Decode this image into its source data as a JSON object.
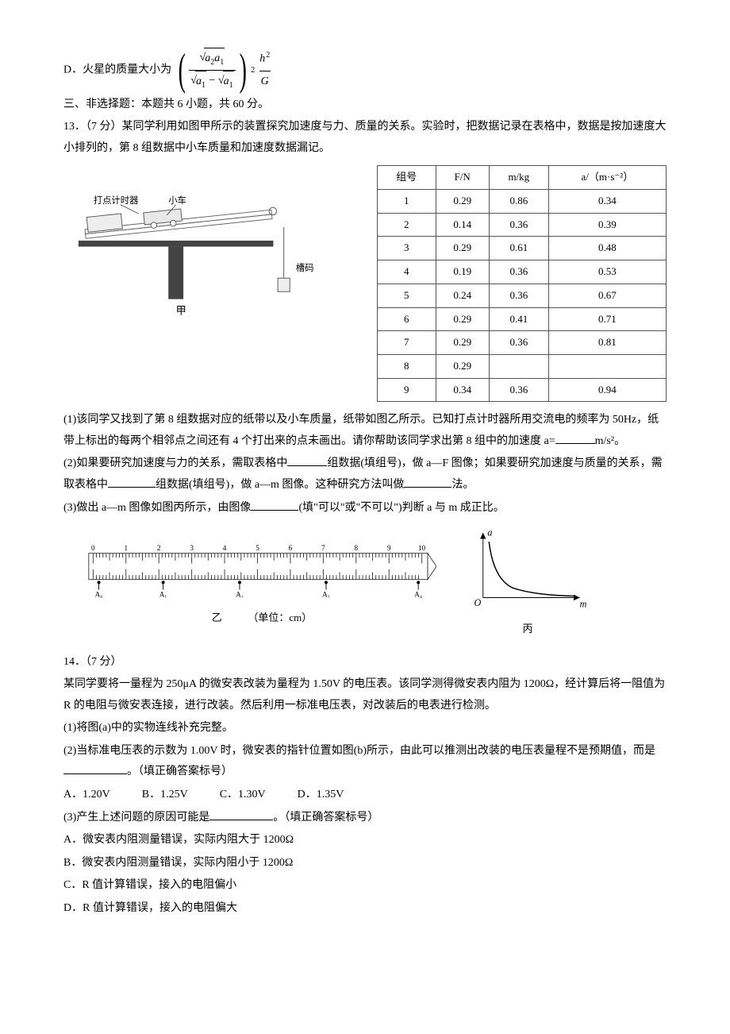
{
  "optD": {
    "label": "D．火星的质量大小为",
    "num_inner": "a",
    "num_s1": "2",
    "num_s2": "1",
    "den_p1": "a",
    "den_s1": "1",
    "den_p2": "a",
    "den_s2": "1",
    "exp": "2",
    "right_num": "h",
    "right_num_exp": "2",
    "right_den": "G"
  },
  "section3": "三、非选择题：本题共 6 小题，共 60 分。",
  "q13": {
    "stem": "13．（7 分）某同学利用如图甲所示的装置探究加速度与力、质量的关系。实验时，把数据记录在表格中，数据是按加速度大小排列的，第 8 组数据中小车质量和加速度数据漏记。",
    "diagram": {
      "labels": {
        "timer": "打点计时器",
        "cart": "小车",
        "weight": "槽码",
        "caption": "甲"
      },
      "colors": {
        "table": "#444",
        "cart": "#ddd",
        "line": "#777"
      }
    },
    "table": {
      "headers": [
        "组号",
        "F/N",
        "m/kg",
        "a/（m·s⁻²）"
      ],
      "rows": [
        [
          "1",
          "0.29",
          "0.86",
          "0.34"
        ],
        [
          "2",
          "0.14",
          "0.36",
          "0.39"
        ],
        [
          "3",
          "0.29",
          "0.61",
          "0.48"
        ],
        [
          "4",
          "0.19",
          "0.36",
          "0.53"
        ],
        [
          "5",
          "0.24",
          "0.36",
          "0.67"
        ],
        [
          "6",
          "0.29",
          "0.41",
          "0.71"
        ],
        [
          "7",
          "0.29",
          "0.36",
          "0.81"
        ],
        [
          "8",
          "0.29",
          "",
          ""
        ],
        [
          "9",
          "0.34",
          "0.36",
          "0.94"
        ]
      ]
    },
    "p1a": "(1)该同学又找到了第 8 组数据对应的纸带以及小车质量，纸带如图乙所示。已知打点计时器所用交流电的频率为 50Hz，纸带上标出的每两个相邻点之间还有 4 个打出来的点未画出。请你帮助该同学求出第 8 组中的加速度 a=",
    "p1b": "m/s²。",
    "p2a": "(2)如果要研究加速度与力的关系，需取表格中",
    "p2b": "组数据(填组号)，做 a—F 图像；如果要研究加速度与质量的关系，需取表格中",
    "p2c": "组数据(填组号)，做 a—m 图像。这种研究方法叫做",
    "p2d": "法。",
    "p3a": "(3)做出 a—m 图像如图丙所示，由图像",
    "p3b": "(填\"可以\"或\"不可以\")判断 a 与 m 成正比。",
    "ruler": {
      "majors": [
        "0",
        "1",
        "2",
        "3",
        "4",
        "5",
        "6",
        "7",
        "8",
        "9",
        "10"
      ],
      "dots": [
        "A₀",
        "A₁",
        "A₂",
        "A₃",
        "A₄"
      ],
      "dotX": [
        8,
        98,
        205,
        326,
        455
      ],
      "caption": "乙",
      "unit": "（单位：cm）",
      "line_color": "#333"
    },
    "graph": {
      "yLabel": "a",
      "xLabel": "m",
      "origin": "O",
      "caption": "丙",
      "axis_color": "#000",
      "curve_color": "#000"
    }
  },
  "q14": {
    "head": "14．（7 分）",
    "stem1": "某同学要将一量程为 250μA 的微安表改装为量程为 1.50V 的电压表。该同学测得微安表内阻为 1200Ω，经计算后将一阻值为 R 的电阻与微安表连接，进行改装。然后利用一标准电压表，对改装后的电表进行检测。",
    "p1": "(1)将图(a)中的实物连线补充完整。",
    "p2a": "(2)当标准电压表的示数为 1.00V 时，微安表的指针位置如图(b)所示，由此可以推测出改装的电压表量程不是预期值，而是",
    "p2b": "。（填正确答案标号）",
    "opts2": [
      "A．1.20V",
      "B．1.25V",
      "C．1.30V",
      "D．1.35V"
    ],
    "p3a": "(3)产生上述问题的原因可能是",
    "p3b": "。（填正确答案标号）",
    "opts3": [
      "A．微安表内阻测量错误，实际内阻大于 1200Ω",
      "B．微安表内阻测量错误，实际内阻小于 1200Ω",
      "C．R 值计算错误，接入的电阻偏小",
      "D．R 值计算错误，接入的电阻偏大"
    ]
  }
}
